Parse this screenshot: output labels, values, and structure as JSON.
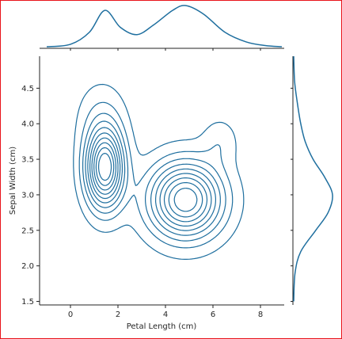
{
  "chart_data": {
    "type": "contour",
    "kind": "jointplot-kde",
    "xlabel": "Petal Length (cm)",
    "ylabel": "Sepal Width (cm)",
    "xlim": [
      -1.3,
      9.0
    ],
    "ylim": [
      1.45,
      4.95
    ],
    "xticks": [
      0,
      2,
      4,
      6,
      8
    ],
    "yticks": [
      1.5,
      2.0,
      2.5,
      3.0,
      3.5,
      4.0,
      4.5
    ],
    "line_color": "#1f6f9f",
    "grid": false,
    "modes": [
      {
        "x": 1.45,
        "y": 3.35
      },
      {
        "x": 4.85,
        "y": 2.95
      }
    ],
    "contour_levels": 10,
    "marginal_x": {
      "x": [
        -1.0,
        0.0,
        0.8,
        1.45,
        2.1,
        2.8,
        3.5,
        4.3,
        4.85,
        5.6,
        6.5,
        7.4,
        8.2,
        8.9
      ],
      "density": [
        0.0,
        0.02,
        0.12,
        0.3,
        0.16,
        0.1,
        0.18,
        0.3,
        0.34,
        0.27,
        0.12,
        0.04,
        0.01,
        0.0
      ]
    },
    "marginal_y": {
      "y": [
        1.5,
        1.9,
        2.2,
        2.5,
        2.75,
        3.0,
        3.25,
        3.5,
        3.75,
        4.0,
        4.3,
        4.6,
        4.95
      ],
      "density": [
        0.0,
        0.03,
        0.16,
        0.5,
        0.78,
        0.88,
        0.7,
        0.44,
        0.26,
        0.16,
        0.08,
        0.02,
        0.0
      ]
    }
  }
}
